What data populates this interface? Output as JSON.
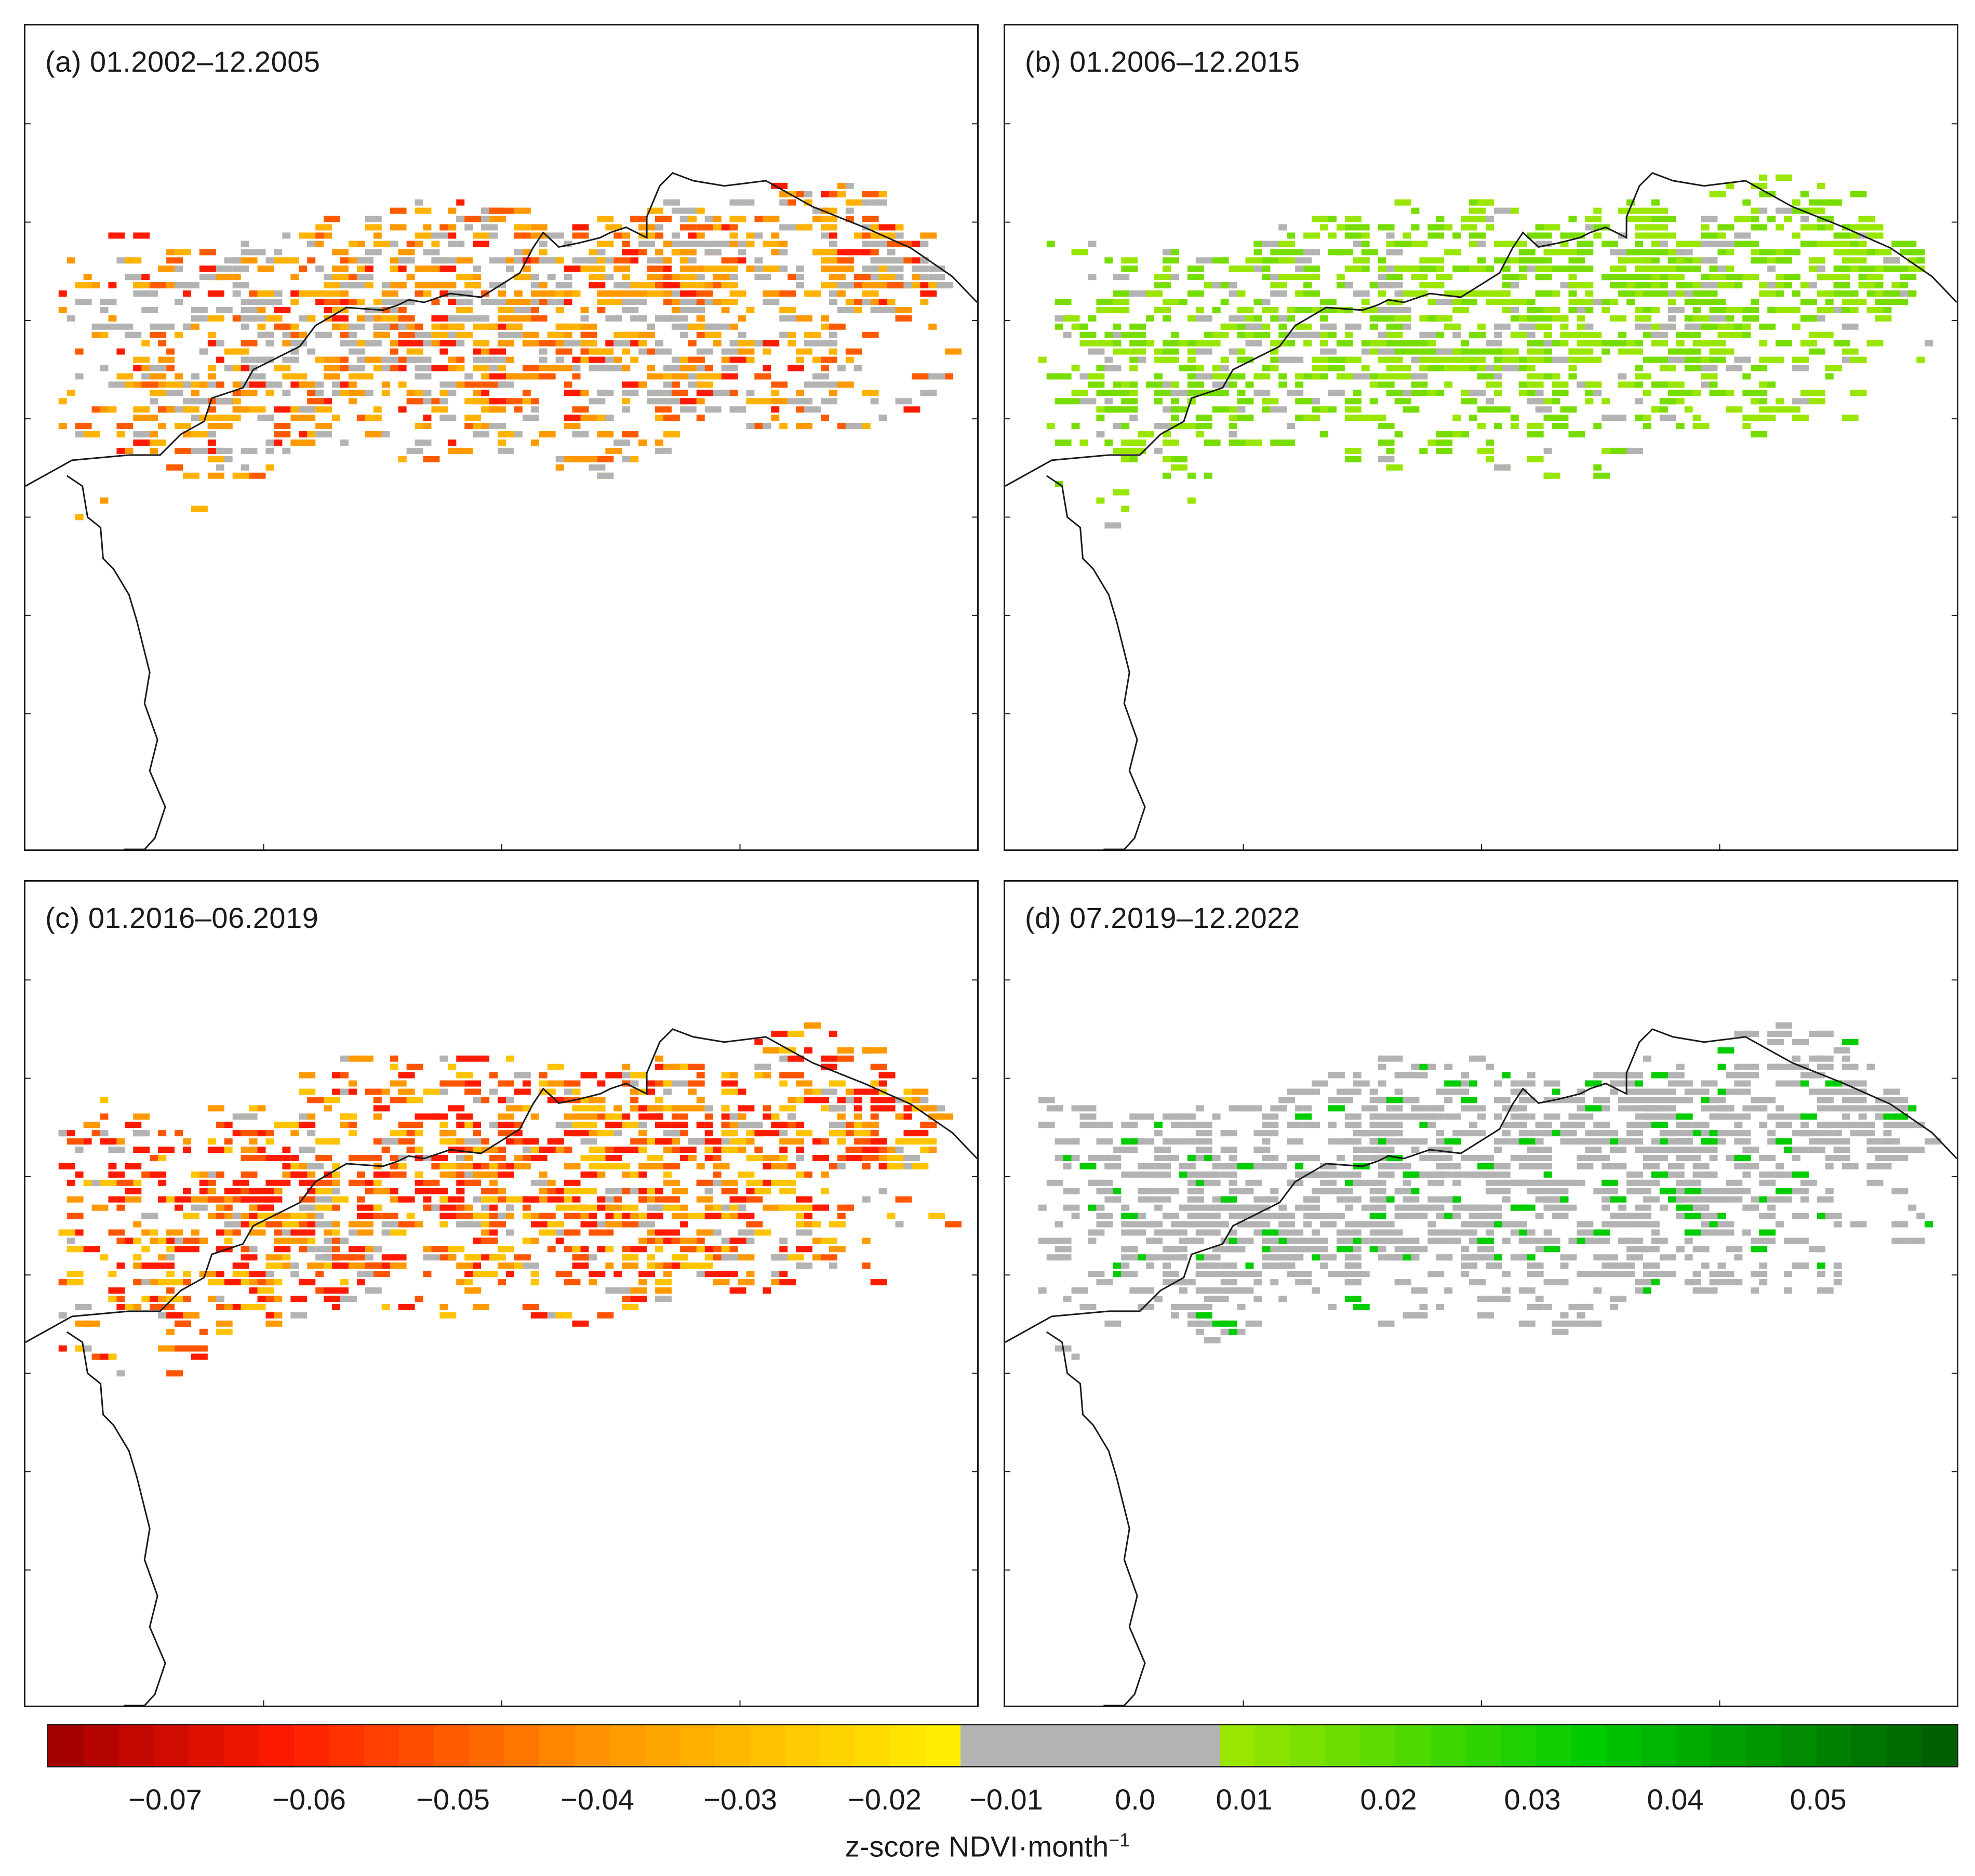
{
  "panels": [
    {
      "id": "a",
      "title": "(a) 01.2002–12.2005",
      "pattern": "negative-moderate"
    },
    {
      "id": "b",
      "title": "(b) 01.2006–12.2015",
      "pattern": "positive-light"
    },
    {
      "id": "c",
      "title": "(c) 01.2016–06.2019",
      "pattern": "negative-strong"
    },
    {
      "id": "d",
      "title": "(d) 07.2019–12.2022",
      "pattern": "mostly-neutral"
    }
  ],
  "colorbar": {
    "ticks": [
      "−0.07",
      "−0.06",
      "−0.05",
      "−0.04",
      "−0.03",
      "−0.02",
      "−0.01",
      "0.0",
      "0.01",
      "0.02",
      "0.03",
      "0.04",
      "0.05"
    ],
    "label": "z-score NDVI·month",
    "label_superscript": "−1",
    "range": [
      -0.08,
      0.06
    ],
    "neutral_range": [
      -0.01,
      0.01
    ]
  },
  "colors": {
    "neutral": "#b3b3b3",
    "outline": "#1a1a1a",
    "neg_strong": "#a50000",
    "neg_mid": "#ff1a00",
    "neg_orange": "#ff9900",
    "neg_light": "#ffee00",
    "pos_light": "#99e600",
    "pos_mid": "#00cc00",
    "pos_dark": "#005f00"
  }
}
